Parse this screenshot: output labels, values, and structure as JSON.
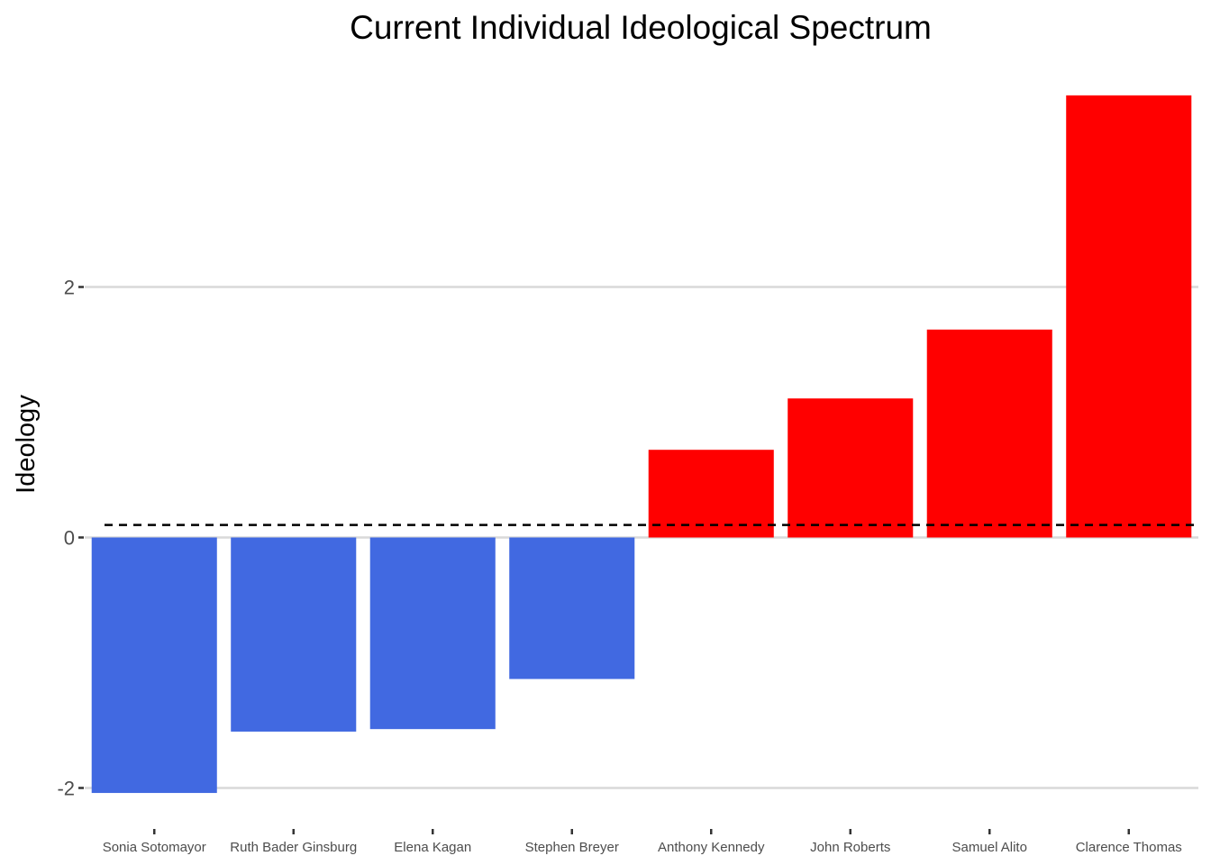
{
  "chart_data": {
    "type": "bar",
    "title": "Current Individual Ideological Spectrum",
    "xlabel": "",
    "ylabel": "Ideology",
    "categories": [
      "Sonia Sotomayor",
      "Ruth Bader Ginsburg",
      "Elena Kagan",
      "Stephen Breyer",
      "Anthony Kennedy",
      "John Roberts",
      "Samuel Alito",
      "Clarence Thomas"
    ],
    "values": [
      -2.04,
      -1.55,
      -1.53,
      -1.13,
      0.7,
      1.11,
      1.66,
      3.53
    ],
    "colors": [
      "#4169E1",
      "#4169E1",
      "#4169E1",
      "#4169E1",
      "#FF0000",
      "#FF0000",
      "#FF0000",
      "#FF0000"
    ],
    "ylim": [
      -2.25,
      3.7
    ],
    "yticks": [
      -2,
      0,
      2
    ],
    "ytick_labels": [
      "-2",
      "0",
      "2"
    ],
    "reference_line": {
      "y": 0.1,
      "style": "dashed",
      "color": "#000000"
    },
    "grid": {
      "horizontal_major": true,
      "vertical": false
    },
    "legend": "none"
  }
}
